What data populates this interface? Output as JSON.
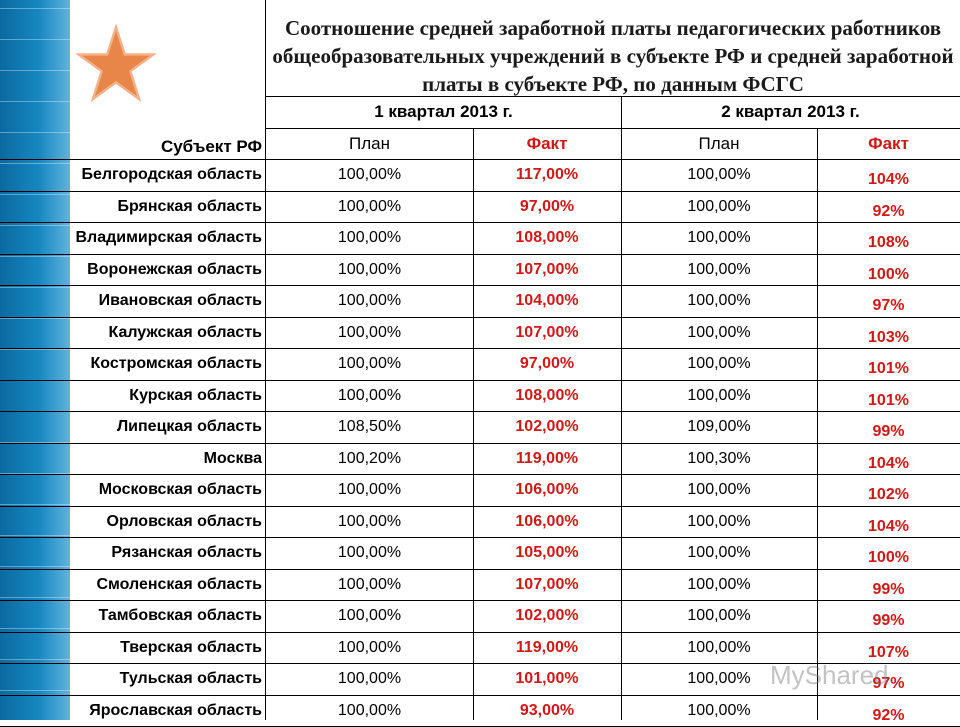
{
  "title": "Соотношение средней заработной платы педагогических работников общеобразовательных учреждений в субъекте РФ и средней заработной платы в субъекте РФ, по данным ФСГС",
  "columns": {
    "region_header": "Субъект РФ",
    "q1_header": "1 квартал 2013 г.",
    "q2_header": "2 квартал 2013 г.",
    "plan_label": "План",
    "fact_label": "Факт"
  },
  "rows": [
    {
      "region": "Белгородская область",
      "q1_plan": "100,00%",
      "q1_fact": "117,00%",
      "q2_plan": "100,00%",
      "q2_fact": "104%"
    },
    {
      "region": "Брянская область",
      "q1_plan": "100,00%",
      "q1_fact": "97,00%",
      "q2_plan": "100,00%",
      "q2_fact": "92%"
    },
    {
      "region": "Владимирская область",
      "q1_plan": "100,00%",
      "q1_fact": "108,00%",
      "q2_plan": "100,00%",
      "q2_fact": "108%"
    },
    {
      "region": "Воронежская область",
      "q1_plan": "100,00%",
      "q1_fact": "107,00%",
      "q2_plan": "100,00%",
      "q2_fact": "100%"
    },
    {
      "region": "Ивановская область",
      "q1_plan": "100,00%",
      "q1_fact": "104,00%",
      "q2_plan": "100,00%",
      "q2_fact": "97%"
    },
    {
      "region": "Калужская область",
      "q1_plan": "100,00%",
      "q1_fact": "107,00%",
      "q2_plan": "100,00%",
      "q2_fact": "103%"
    },
    {
      "region": "Костромская область",
      "q1_plan": "100,00%",
      "q1_fact": "97,00%",
      "q2_plan": "100,00%",
      "q2_fact": "101%"
    },
    {
      "region": "Курская область",
      "q1_plan": "100,00%",
      "q1_fact": "108,00%",
      "q2_plan": "100,00%",
      "q2_fact": "101%"
    },
    {
      "region": "Липецкая область",
      "q1_plan": "108,50%",
      "q1_fact": "102,00%",
      "q2_plan": "109,00%",
      "q2_fact": "99%"
    },
    {
      "region": "Москва",
      "q1_plan": "100,20%",
      "q1_fact": "119,00%",
      "q2_plan": "100,30%",
      "q2_fact": "104%"
    },
    {
      "region": "Московская область",
      "q1_plan": "100,00%",
      "q1_fact": "106,00%",
      "q2_plan": "100,00%",
      "q2_fact": "102%"
    },
    {
      "region": "Орловская область",
      "q1_plan": "100,00%",
      "q1_fact": "106,00%",
      "q2_plan": "100,00%",
      "q2_fact": "104%"
    },
    {
      "region": "Рязанская область",
      "q1_plan": "100,00%",
      "q1_fact": "105,00%",
      "q2_plan": "100,00%",
      "q2_fact": "100%"
    },
    {
      "region": "Смоленская область",
      "q1_plan": "100,00%",
      "q1_fact": "107,00%",
      "q2_plan": "100,00%",
      "q2_fact": "99%"
    },
    {
      "region": "Тамбовская область",
      "q1_plan": "100,00%",
      "q1_fact": "102,00%",
      "q2_plan": "100,00%",
      "q2_fact": "99%"
    },
    {
      "region": "Тверская область",
      "q1_plan": "100,00%",
      "q1_fact": "119,00%",
      "q2_plan": "100,00%",
      "q2_fact": "107%"
    },
    {
      "region": "Тульская область",
      "q1_plan": "100,00%",
      "q1_fact": "101,00%",
      "q2_plan": "100,00%",
      "q2_fact": "97%"
    },
    {
      "region": "Ярославская область",
      "q1_plan": "100,00%",
      "q1_fact": "93,00%",
      "q2_plan": "100,00%",
      "q2_fact": "92%"
    }
  ],
  "watermark": "MyShared",
  "colors": {
    "fact": "#d01818",
    "sidebar": "#1787c0",
    "star": "#e8864a"
  }
}
